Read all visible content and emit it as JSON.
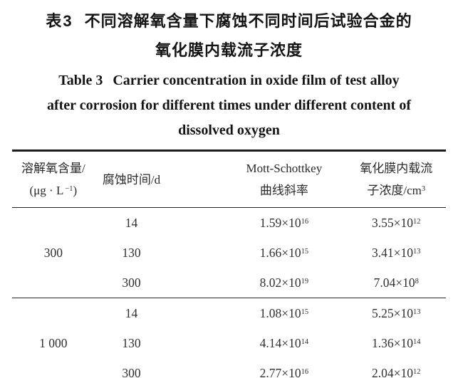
{
  "title": {
    "zh_label": "表3",
    "zh_line1_text": "不同溶解氧含量下腐蚀不同时间后试验合金的",
    "zh_line2": "氧化膜内载流子浓度",
    "en_label": "Table 3",
    "en_line1_text": "Carrier concentration in oxide film of test alloy",
    "en_line2": "after corrosion for different times under different content of",
    "en_line3": "dissolved oxygen"
  },
  "table": {
    "sci_infix": "×10",
    "headers": {
      "oxygen_line1": "溶解氧含量/",
      "oxygen_unit_pre": "(μg · L",
      "oxygen_unit_sup": "−1",
      "oxygen_unit_post": ")",
      "time": "腐蚀时间/d",
      "slope_line1": "Mott-Schottkey",
      "slope_line2": "曲线斜率",
      "carrier_line1": "氧化膜内载流",
      "carrier_line2_pre": "子浓度/cm",
      "carrier_line2_sup": "3"
    },
    "groups": [
      {
        "oxygen": "300",
        "rows": [
          {
            "time": "14",
            "slope": {
              "m": "1.59",
              "e": "16"
            },
            "carrier": {
              "m": "3.55",
              "e": "12"
            }
          },
          {
            "time": "130",
            "slope": {
              "m": "1.66",
              "e": "15"
            },
            "carrier": {
              "m": "3.41",
              "e": "13"
            }
          },
          {
            "time": "300",
            "slope": {
              "m": "8.02",
              "e": "19"
            },
            "carrier": {
              "m": "7.04",
              "e": "8"
            }
          }
        ]
      },
      {
        "oxygen": "1 000",
        "rows": [
          {
            "time": "14",
            "slope": {
              "m": "1.08",
              "e": "15"
            },
            "carrier": {
              "m": "5.25",
              "e": "13"
            }
          },
          {
            "time": "130",
            "slope": {
              "m": "4.14",
              "e": "14"
            },
            "carrier": {
              "m": "1.36",
              "e": "14"
            }
          },
          {
            "time": "300",
            "slope": {
              "m": "2.77",
              "e": "16"
            },
            "carrier": {
              "m": "2.04",
              "e": "12"
            }
          }
        ]
      }
    ]
  }
}
